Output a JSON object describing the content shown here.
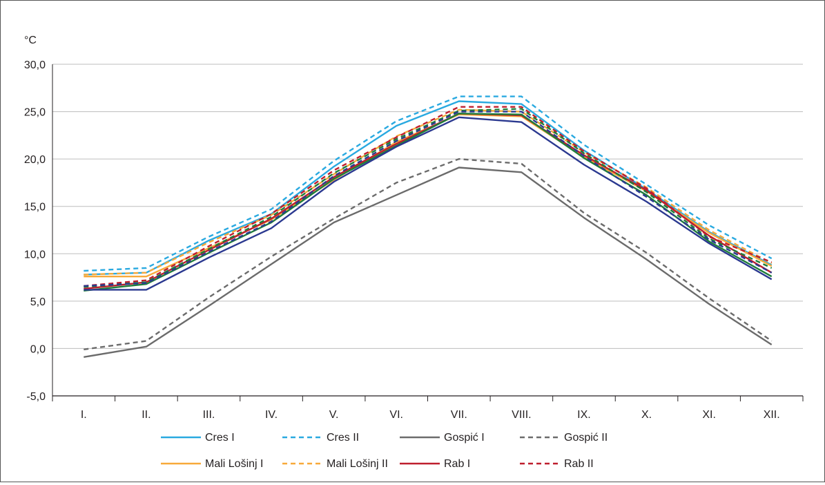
{
  "chart_data": {
    "type": "line",
    "ylabel": "°C",
    "ylim": [
      -5,
      30
    ],
    "yticks": [
      "-5,0",
      "0,0",
      "5,0",
      "10,0",
      "15,0",
      "20,0",
      "25,0",
      "30,0"
    ],
    "ytick_values": [
      -5,
      0,
      5,
      10,
      15,
      20,
      25,
      30
    ],
    "categories": [
      "I.",
      "II.",
      "III.",
      "IV.",
      "V.",
      "VI.",
      "VII.",
      "VIII.",
      "IX.",
      "X.",
      "XI.",
      "XII."
    ],
    "grid": true,
    "legend_position": "bottom",
    "series": [
      {
        "name": "Cres I",
        "color": "#29a9e0",
        "dash": false,
        "values": [
          7.8,
          8.0,
          11.4,
          14.2,
          19.2,
          23.5,
          26.1,
          25.8,
          20.9,
          16.8,
          12.3,
          8.8
        ]
      },
      {
        "name": "Cres II",
        "color": "#29a9e0",
        "dash": true,
        "values": [
          8.2,
          8.5,
          11.8,
          14.7,
          19.8,
          24.0,
          26.6,
          26.6,
          21.5,
          17.3,
          13.0,
          9.5
        ]
      },
      {
        "name": "Gospić I",
        "color": "#6b6b6b",
        "dash": false,
        "values": [
          -0.9,
          0.2,
          4.5,
          8.9,
          13.3,
          16.2,
          19.1,
          18.6,
          13.8,
          9.4,
          4.7,
          0.4
        ]
      },
      {
        "name": "Gospić II",
        "color": "#6b6b6b",
        "dash": true,
        "values": [
          -0.1,
          0.8,
          5.4,
          9.7,
          13.7,
          17.5,
          20.0,
          19.5,
          14.3,
          10.1,
          5.3,
          0.8
        ]
      },
      {
        "name": "Mali Lošinj I",
        "color": "#f7a93a",
        "dash": false,
        "values": [
          7.6,
          7.6,
          10.6,
          13.6,
          17.8,
          21.8,
          24.7,
          24.5,
          20.2,
          16.6,
          12.2,
          8.7
        ]
      },
      {
        "name": "Mali Lošinj II",
        "color": "#f7a93a",
        "dash": true,
        "values": [
          7.8,
          8.0,
          11.2,
          14.1,
          18.4,
          22.4,
          25.2,
          25.0,
          20.7,
          17.0,
          12.5,
          9.0
        ]
      },
      {
        "name": "Rab I",
        "color": "#be1e2d",
        "dash": false,
        "values": [
          6.3,
          7.0,
          10.4,
          13.7,
          18.1,
          21.6,
          24.8,
          24.6,
          20.4,
          16.7,
          11.9,
          8.0
        ]
      },
      {
        "name": "Rab II",
        "color": "#be1e2d",
        "dash": true,
        "values": [
          6.6,
          7.2,
          10.8,
          14.2,
          18.8,
          22.3,
          25.5,
          25.5,
          20.8,
          16.9,
          11.8,
          9.1
        ]
      },
      {
        "name": "",
        "color": "#1e7d3a",
        "dash": false,
        "values": [
          6.1,
          6.8,
          10.1,
          13.3,
          17.9,
          21.4,
          24.8,
          24.7,
          20.1,
          16.2,
          11.3,
          7.6
        ]
      },
      {
        "name": "",
        "color": "#1e7d3a",
        "dash": true,
        "values": [
          6.5,
          7.0,
          10.5,
          13.9,
          18.5,
          22.1,
          25.1,
          25.3,
          20.6,
          16.5,
          11.6,
          8.5
        ]
      },
      {
        "name": "",
        "color": "#2b3990",
        "dash": false,
        "values": [
          6.2,
          6.2,
          9.6,
          12.7,
          17.6,
          21.3,
          24.4,
          23.9,
          19.4,
          15.5,
          11.1,
          7.3
        ]
      },
      {
        "name": "",
        "color": "#2b3990",
        "dash": true,
        "values": [
          6.6,
          6.9,
          10.2,
          13.4,
          18.2,
          21.9,
          25.0,
          25.0,
          20.3,
          16.0,
          11.5,
          8.0
        ]
      }
    ]
  }
}
